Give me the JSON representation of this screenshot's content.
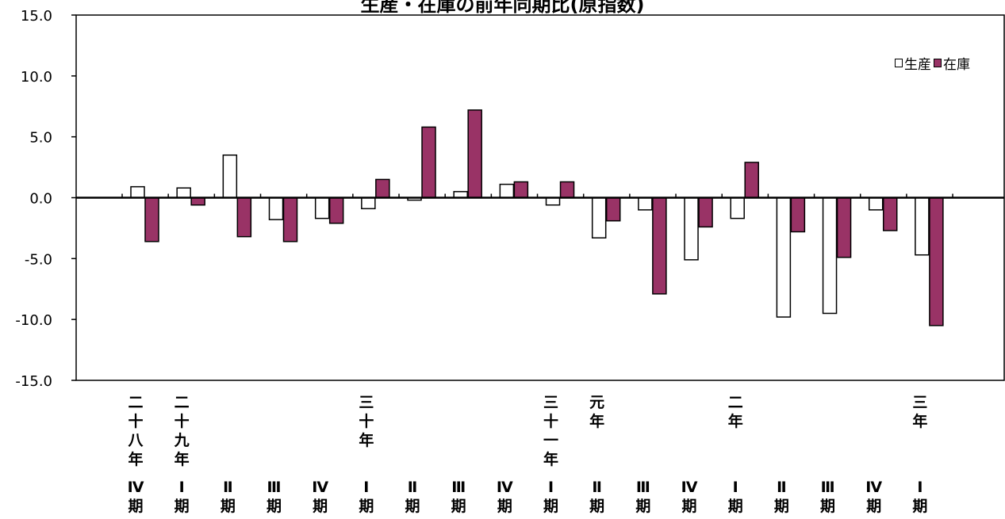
{
  "chart_data": {
    "type": "bar",
    "title": "生産・在庫の前年同期比(原指数)",
    "ylim": [
      -15,
      15
    ],
    "yticks": [
      "15.0",
      "10.0",
      "5.0",
      "0.0",
      "-5.0",
      "-10.0",
      "-15.0"
    ],
    "ytick_values": [
      15,
      10,
      5,
      0,
      -5,
      -10,
      -15
    ],
    "legend_position": "top-right",
    "categories": [
      {
        "year": "二十八年",
        "quarter": "Ⅳ期"
      },
      {
        "year": "二十九年",
        "quarter": "Ⅰ期"
      },
      {
        "year": "",
        "quarter": "Ⅱ期"
      },
      {
        "year": "",
        "quarter": "Ⅲ期"
      },
      {
        "year": "",
        "quarter": "Ⅳ期"
      },
      {
        "year": "三十年",
        "quarter": "Ⅰ期"
      },
      {
        "year": "",
        "quarter": "Ⅱ期"
      },
      {
        "year": "",
        "quarter": "Ⅲ期"
      },
      {
        "year": "",
        "quarter": "Ⅳ期"
      },
      {
        "year": "三十一年",
        "quarter": "Ⅰ期"
      },
      {
        "year": "元年",
        "quarter": "Ⅱ期"
      },
      {
        "year": "",
        "quarter": "Ⅲ期"
      },
      {
        "year": "",
        "quarter": "Ⅳ期"
      },
      {
        "year": "二年",
        "quarter": "Ⅰ期"
      },
      {
        "year": "",
        "quarter": "Ⅱ期"
      },
      {
        "year": "",
        "quarter": "Ⅲ期"
      },
      {
        "year": "",
        "quarter": "Ⅳ期"
      },
      {
        "year": "三年",
        "quarter": "Ⅰ期"
      }
    ],
    "series": [
      {
        "name": "生産",
        "color": "#ffffff",
        "values": [
          0.9,
          0.8,
          3.5,
          -1.8,
          -1.7,
          -0.9,
          -0.2,
          0.5,
          1.1,
          -0.6,
          -3.3,
          -1.0,
          -5.1,
          -1.7,
          -9.8,
          -9.5,
          -1.0,
          -4.7
        ]
      },
      {
        "name": "在庫",
        "color": "#993366",
        "values": [
          -3.6,
          -0.6,
          -3.2,
          -3.6,
          -2.1,
          1.5,
          5.8,
          7.2,
          1.3,
          1.3,
          -1.9,
          -7.9,
          -2.4,
          2.9,
          -2.8,
          -4.9,
          -2.7,
          -10.5
        ]
      }
    ]
  }
}
